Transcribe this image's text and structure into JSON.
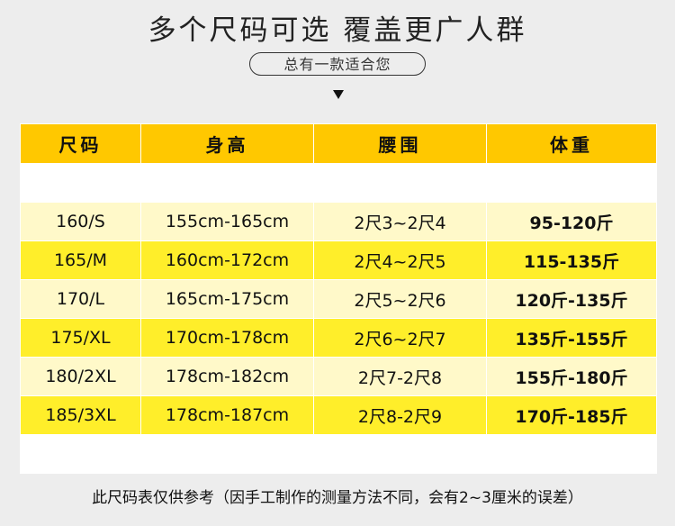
{
  "title": "多个尺码可选 覆盖更广人群",
  "subtitle": "总有一款适合您",
  "colors": {
    "header": "#ffc800",
    "row_light": "#fff9c9",
    "row_bright": "#ffee2a",
    "background": "#ededed"
  },
  "table": {
    "headers": [
      "尺码",
      "身高",
      "腰围",
      "体重"
    ],
    "rows": [
      [
        "160/S",
        "155cm-165cm",
        "2尺3~2尺4",
        "95-120斤"
      ],
      [
        "165/M",
        "160cm-172cm",
        "2尺4~2尺5",
        "115-135斤"
      ],
      [
        "170/L",
        "165cm-175cm",
        "2尺5~2尺6",
        "120斤-135斤"
      ],
      [
        "175/XL",
        "170cm-178cm",
        "2尺6~2尺7",
        "135斤-155斤"
      ],
      [
        "180/2XL",
        "178cm-182cm",
        "2尺7-2尺8",
        "155斤-180斤"
      ],
      [
        "185/3XL",
        "178cm-187cm",
        "2尺8-2尺9",
        "170斤-185斤"
      ]
    ]
  },
  "note": "此尺码表仅供参考（因手工制作的测量方法不同，会有2~3厘米的误差）"
}
